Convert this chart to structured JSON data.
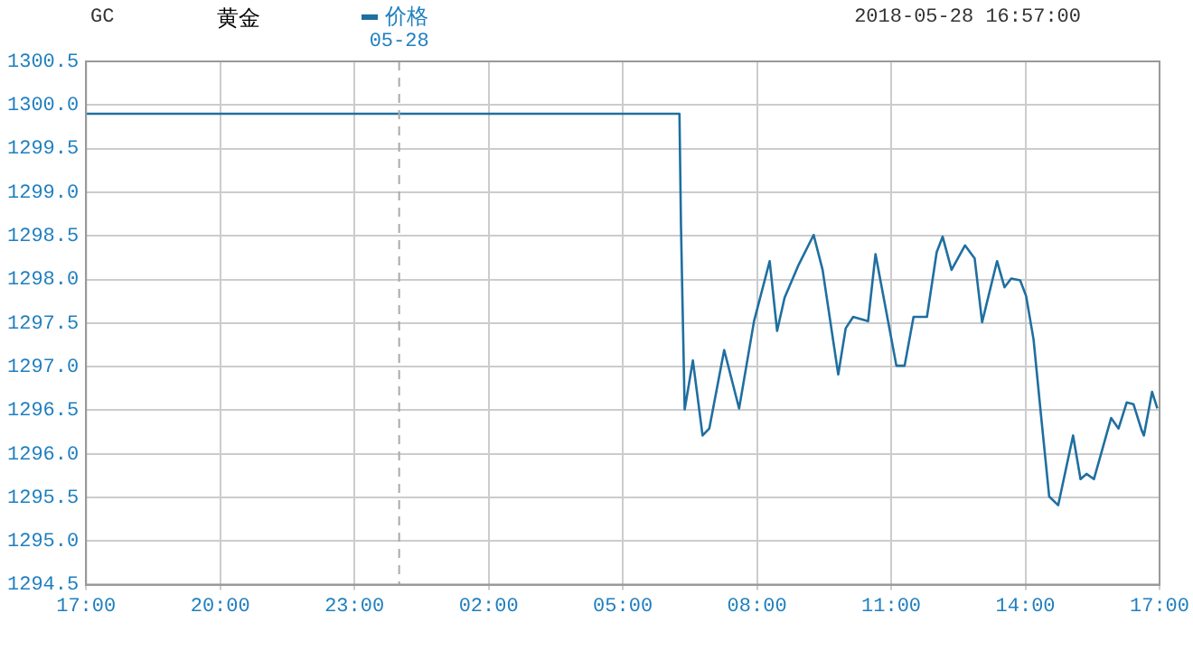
{
  "chart_data": {
    "type": "line",
    "title": "GC",
    "subtitle": "黄金",
    "annotations": [
      "2018-05-28 16:57:00"
    ],
    "x": [
      "2018-05-27T17:00",
      "2018-05-28T06:16",
      "2018-05-28T06:18",
      "2018-05-28T06:20",
      "2018-05-28T06:23",
      "2018-05-28T06:34",
      "2018-05-28T06:47",
      "2018-05-28T06:56",
      "2018-05-28T07:16",
      "2018-05-28T07:36",
      "2018-05-28T07:56",
      "2018-05-28T08:17",
      "2018-05-28T08:27",
      "2018-05-28T08:37",
      "2018-05-28T08:56",
      "2018-05-28T09:16",
      "2018-05-28T09:28",
      "2018-05-28T09:49",
      "2018-05-28T09:59",
      "2018-05-28T10:09",
      "2018-05-28T10:29",
      "2018-05-28T10:39",
      "2018-05-28T11:07",
      "2018-05-28T11:18",
      "2018-05-28T11:30",
      "2018-05-28T11:48",
      "2018-05-28T12:01",
      "2018-05-28T12:09",
      "2018-05-28T12:21",
      "2018-05-28T12:39",
      "2018-05-28T12:52",
      "2018-05-28T13:02",
      "2018-05-28T13:22",
      "2018-05-28T13:32",
      "2018-05-28T13:41",
      "2018-05-28T13:53",
      "2018-05-28T14:01",
      "2018-05-28T14:11",
      "2018-05-28T14:21",
      "2018-05-28T14:32",
      "2018-05-28T14:44",
      "2018-05-28T15:04",
      "2018-05-28T15:14",
      "2018-05-28T15:22",
      "2018-05-28T15:32",
      "2018-05-28T15:55",
      "2018-05-28T16:05",
      "2018-05-28T16:16",
      "2018-05-28T16:25",
      "2018-05-28T16:36",
      "2018-05-28T16:39",
      "2018-05-28T16:50",
      "2018-05-28T16:57"
    ],
    "series": [
      {
        "name": "价格",
        "color": "#1f6fa0",
        "values": [
          1299.9,
          1299.9,
          1298.64,
          1297.77,
          1296.51,
          1297.07,
          1296.21,
          1296.29,
          1297.19,
          1296.52,
          1297.52,
          1298.21,
          1297.41,
          1297.79,
          1298.17,
          1298.51,
          1298.11,
          1296.91,
          1297.44,
          1297.57,
          1297.52,
          1298.29,
          1297.01,
          1297.01,
          1297.57,
          1297.57,
          1298.31,
          1298.49,
          1298.11,
          1298.39,
          1298.24,
          1297.51,
          1298.21,
          1297.91,
          1298.01,
          1297.99,
          1297.81,
          1297.31,
          1296.44,
          1295.51,
          1295.41,
          1296.21,
          1295.71,
          1295.77,
          1295.71,
          1296.41,
          1296.29,
          1296.59,
          1296.57,
          1296.27,
          1296.21,
          1296.71,
          1296.52
        ]
      }
    ],
    "xlim": [
      "2018-05-27T17:00",
      "2018-05-28T17:00"
    ],
    "xticks": [
      {
        "value": "2018-05-27T17:00",
        "label": "17:00"
      },
      {
        "value": "2018-05-27T20:00",
        "label": "20:00"
      },
      {
        "value": "2018-05-27T23:00",
        "label": "23:00"
      },
      {
        "value": "2018-05-28T02:00",
        "label": "02:00"
      },
      {
        "value": "2018-05-28T05:00",
        "label": "05:00"
      },
      {
        "value": "2018-05-28T08:00",
        "label": "08:00"
      },
      {
        "value": "2018-05-28T11:00",
        "label": "11:00"
      },
      {
        "value": "2018-05-28T14:00",
        "label": "14:00"
      },
      {
        "value": "2018-05-28T17:00",
        "label": "17:00"
      }
    ],
    "ylim": [
      1294.5,
      1300.5
    ],
    "yticks": [
      {
        "value": 1294.5,
        "label": "1294.5"
      },
      {
        "value": 1295,
        "label": "1295.0"
      },
      {
        "value": 1295.5,
        "label": "1295.5"
      },
      {
        "value": 1296,
        "label": "1296.0"
      },
      {
        "value": 1296.5,
        "label": "1296.5"
      },
      {
        "value": 1297,
        "label": "1297.0"
      },
      {
        "value": 1297.5,
        "label": "1297.5"
      },
      {
        "value": 1298,
        "label": "1298.0"
      },
      {
        "value": 1298.5,
        "label": "1298.5"
      },
      {
        "value": 1299,
        "label": "1299.0"
      },
      {
        "value": 1299.5,
        "label": "1299.5"
      },
      {
        "value": 1300,
        "label": "1300.0"
      },
      {
        "value": 1300.5,
        "label": "1300.5"
      }
    ],
    "ref_lines": [
      {
        "axis": "x",
        "value": "2018-05-28",
        "label": "05-28",
        "color": "#aaaaaa",
        "line_style": "dashed"
      }
    ],
    "grid": true,
    "legend": "top",
    "marker": "none",
    "line_style": "solid"
  }
}
